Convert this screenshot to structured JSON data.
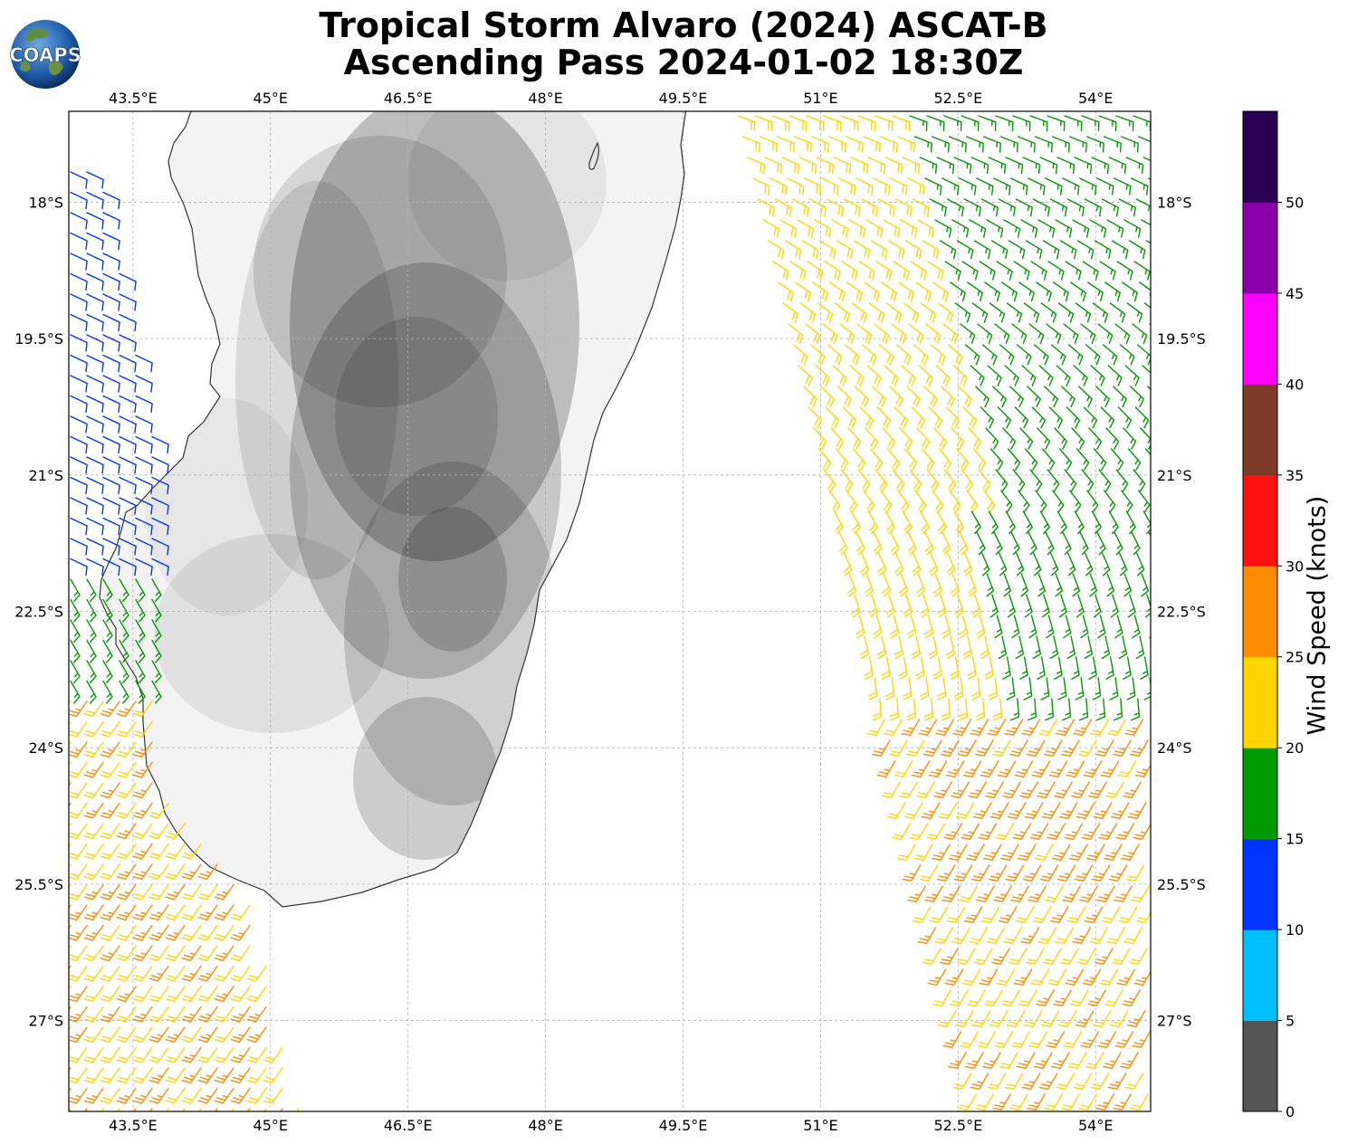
{
  "title": {
    "line1": "Tropical Storm Alvaro (2024) ASCAT-B",
    "line2": "Ascending Pass 2024-01-02 18:30Z"
  },
  "logo": {
    "text": "COAPS"
  },
  "map": {
    "lon_range": [
      42.8,
      54.6
    ],
    "lat_range": [
      -28.0,
      -17.0
    ],
    "lon_ticks": [
      "43.5°E",
      "45°E",
      "46.5°E",
      "48°E",
      "49.5°E",
      "51°E",
      "52.5°E",
      "54°E"
    ],
    "lon_tick_values": [
      43.5,
      45,
      46.5,
      48,
      49.5,
      51,
      52.5,
      54
    ],
    "lat_ticks": [
      "18°S",
      "19.5°S",
      "21°S",
      "22.5°S",
      "24°S",
      "25.5°S",
      "27°S"
    ],
    "lat_tick_values": [
      -18,
      -19.5,
      -21,
      -22.5,
      -24,
      -25.5,
      -27
    ],
    "gridlines": true,
    "land": "Madagascar",
    "colors": {
      "coast": "#333333",
      "land_light": "#f2f2f2",
      "land_dark": "#a8a8a8",
      "grid": "#b0b0b0"
    }
  },
  "colorbar": {
    "label": "Wind Speed (knots)",
    "ticks": [
      "0",
      "5",
      "10",
      "15",
      "20",
      "25",
      "30",
      "35",
      "40",
      "45",
      "50"
    ],
    "bins": [
      {
        "min": 0,
        "max": 5,
        "color": "#555555"
      },
      {
        "min": 5,
        "max": 10,
        "color": "#00bfff"
      },
      {
        "min": 10,
        "max": 15,
        "color": "#0033ff"
      },
      {
        "min": 15,
        "max": 20,
        "color": "#009900"
      },
      {
        "min": 20,
        "max": 25,
        "color": "#ffd500"
      },
      {
        "min": 25,
        "max": 30,
        "color": "#ff8c00"
      },
      {
        "min": 30,
        "max": 35,
        "color": "#ff1010"
      },
      {
        "min": 35,
        "max": 40,
        "color": "#803a28"
      },
      {
        "min": 40,
        "max": 45,
        "color": "#ff00ff"
      },
      {
        "min": 45,
        "max": 50,
        "color": "#8a00aa"
      },
      {
        "min": 50,
        "max": 55,
        "color": "#2a0055"
      }
    ]
  }
}
